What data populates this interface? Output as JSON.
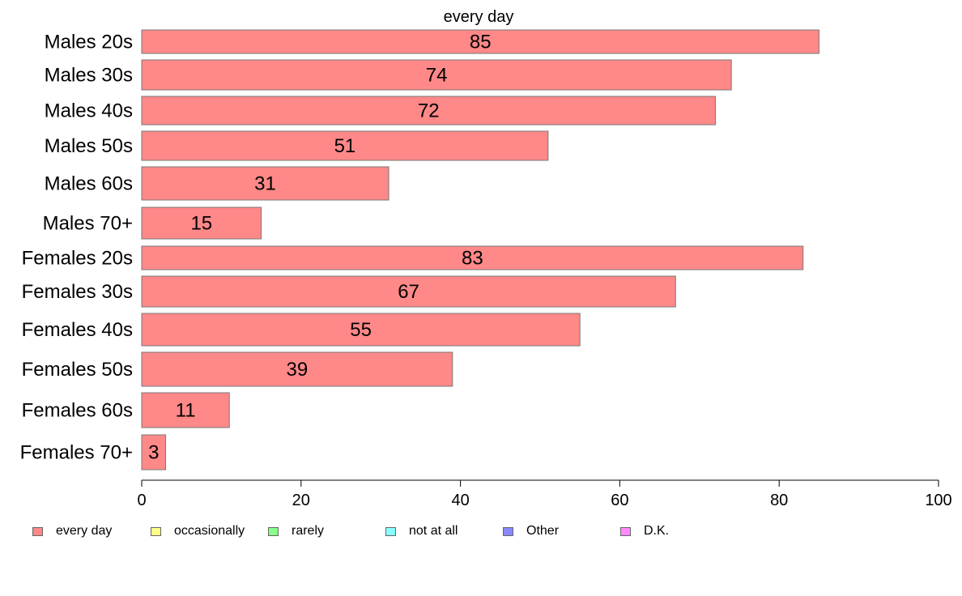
{
  "chart_data": {
    "type": "bar",
    "orientation": "horizontal",
    "title": "every day",
    "categories": [
      "Males 20s",
      "Males 30s",
      "Males 40s",
      "Males 50s",
      "Males 60s",
      "Males 70+",
      "Females 20s",
      "Females 30s",
      "Females 40s",
      "Females 50s",
      "Females 60s",
      "Females 70+"
    ],
    "series": [
      {
        "name": "every day",
        "color": "#ff8888",
        "values": [
          85,
          74,
          72,
          51,
          31,
          15,
          83,
          67,
          55,
          39,
          11,
          3
        ]
      }
    ],
    "xlim": [
      0,
      100
    ],
    "xticks": [
      "0",
      "20",
      "40",
      "60",
      "80",
      "100"
    ],
    "grid": false,
    "legend_position": "bottom",
    "legend": [
      {
        "label": "every day",
        "color": "#ff8888"
      },
      {
        "label": "occasionally",
        "color": "#ffff88"
      },
      {
        "label": "rarely",
        "color": "#88ff88"
      },
      {
        "label": "not at all",
        "color": "#88ffff"
      },
      {
        "label": "Other",
        "color": "#8888ff"
      },
      {
        "label": "D.K.",
        "color": "#ff88ff"
      }
    ]
  }
}
